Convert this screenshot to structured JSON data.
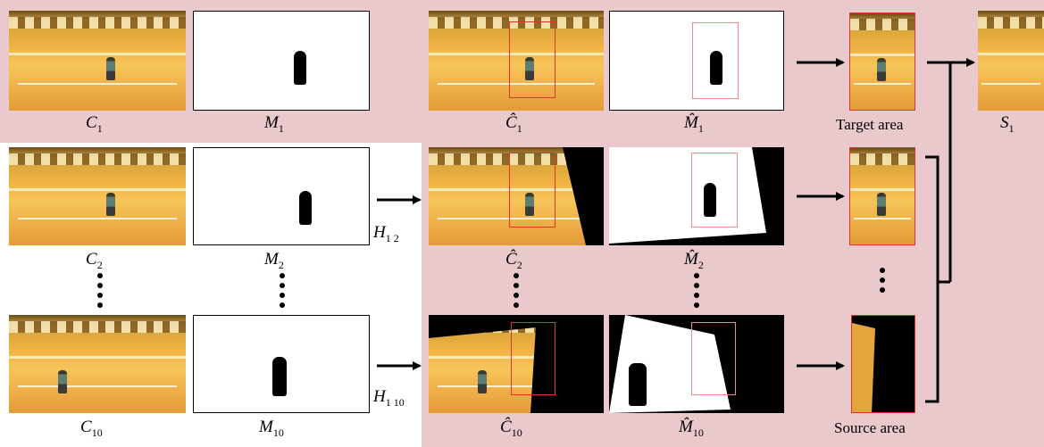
{
  "labels": {
    "c1": "C",
    "c1_sub": "1",
    "m1": "M",
    "m1_sub": "1",
    "c2": "C",
    "c2_sub": "2",
    "m2": "M",
    "m2_sub": "2",
    "c10": "C",
    "c10_sub": "10",
    "m10": "M",
    "m10_sub": "10",
    "ch1": "Ĉ",
    "ch1_sub": "1",
    "mh1": "M̂",
    "mh1_sub": "1",
    "ch2": "Ĉ",
    "ch2_sub": "2",
    "mh2": "M̂",
    "mh2_sub": "2",
    "ch10": "Ĉ",
    "ch10_sub": "10",
    "mh10": "M̂",
    "mh10_sub": "10",
    "s1": "S",
    "s1_sub": "1",
    "h12": "H",
    "h12_sub": "1 2",
    "h110": "H",
    "h110_sub": "1 10",
    "target_area": "Target area",
    "source_area": "Source area"
  },
  "colors": {
    "background_panel": "#e9c9cb",
    "region_box": "#e03434",
    "region_box_light": "#f08a8a"
  }
}
